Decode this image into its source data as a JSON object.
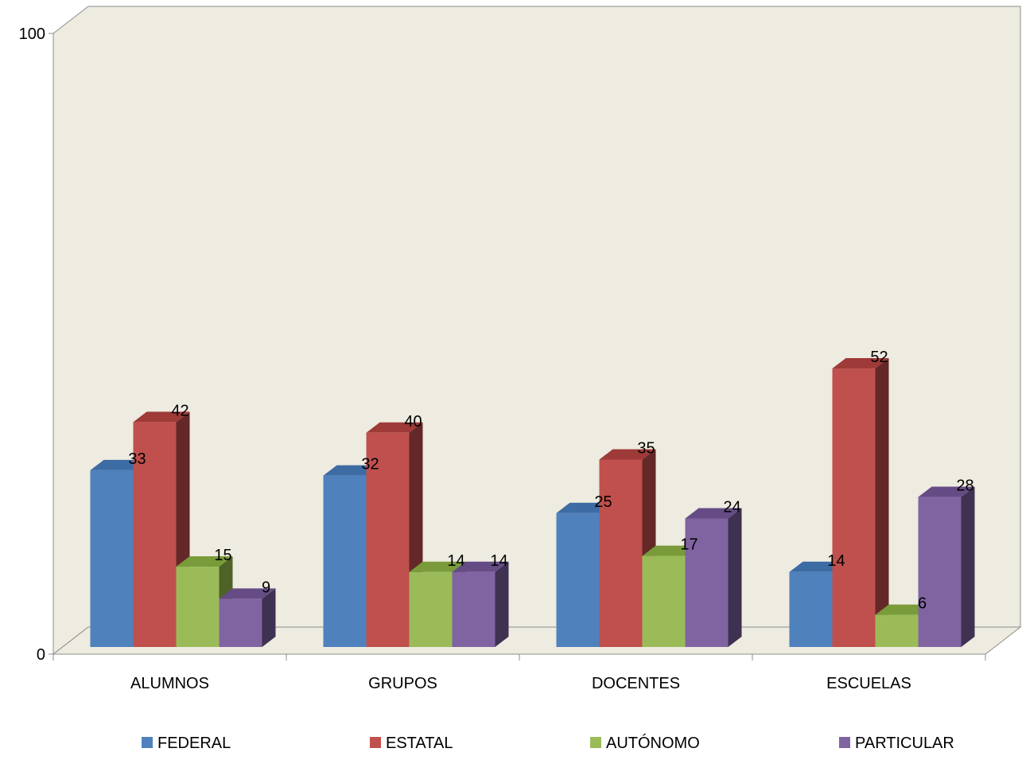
{
  "chart_data": {
    "type": "bar",
    "title": "",
    "xlabel": "",
    "ylabel": "",
    "ylim": [
      0,
      100
    ],
    "yticks": [
      "0",
      "100"
    ],
    "categories": [
      "ALUMNOS",
      "GRUPOS",
      "DOCENTES",
      "ESCUELAS"
    ],
    "series": [
      {
        "name": "FEDERAL",
        "values": [
          33,
          32,
          25,
          14
        ],
        "color": "#4F81BD",
        "top": "#3D6BA3",
        "side": "#2F5283"
      },
      {
        "name": "ESTATAL",
        "values": [
          42,
          40,
          35,
          52
        ],
        "color": "#C0504D",
        "top": "#9E3A37",
        "side": "#632827"
      },
      {
        "name": "AUTÓNOMO",
        "values": [
          15,
          14,
          17,
          6
        ],
        "color": "#9BBB59",
        "top": "#7A9B3A",
        "side": "#4F6228"
      },
      {
        "name": "PARTICULAR",
        "values": [
          9,
          14,
          24,
          28
        ],
        "color": "#8064A2",
        "top": "#654C85",
        "side": "#3F3151"
      }
    ],
    "wall_color": "#EEEBE0",
    "grid": false,
    "legend": "bottom"
  }
}
